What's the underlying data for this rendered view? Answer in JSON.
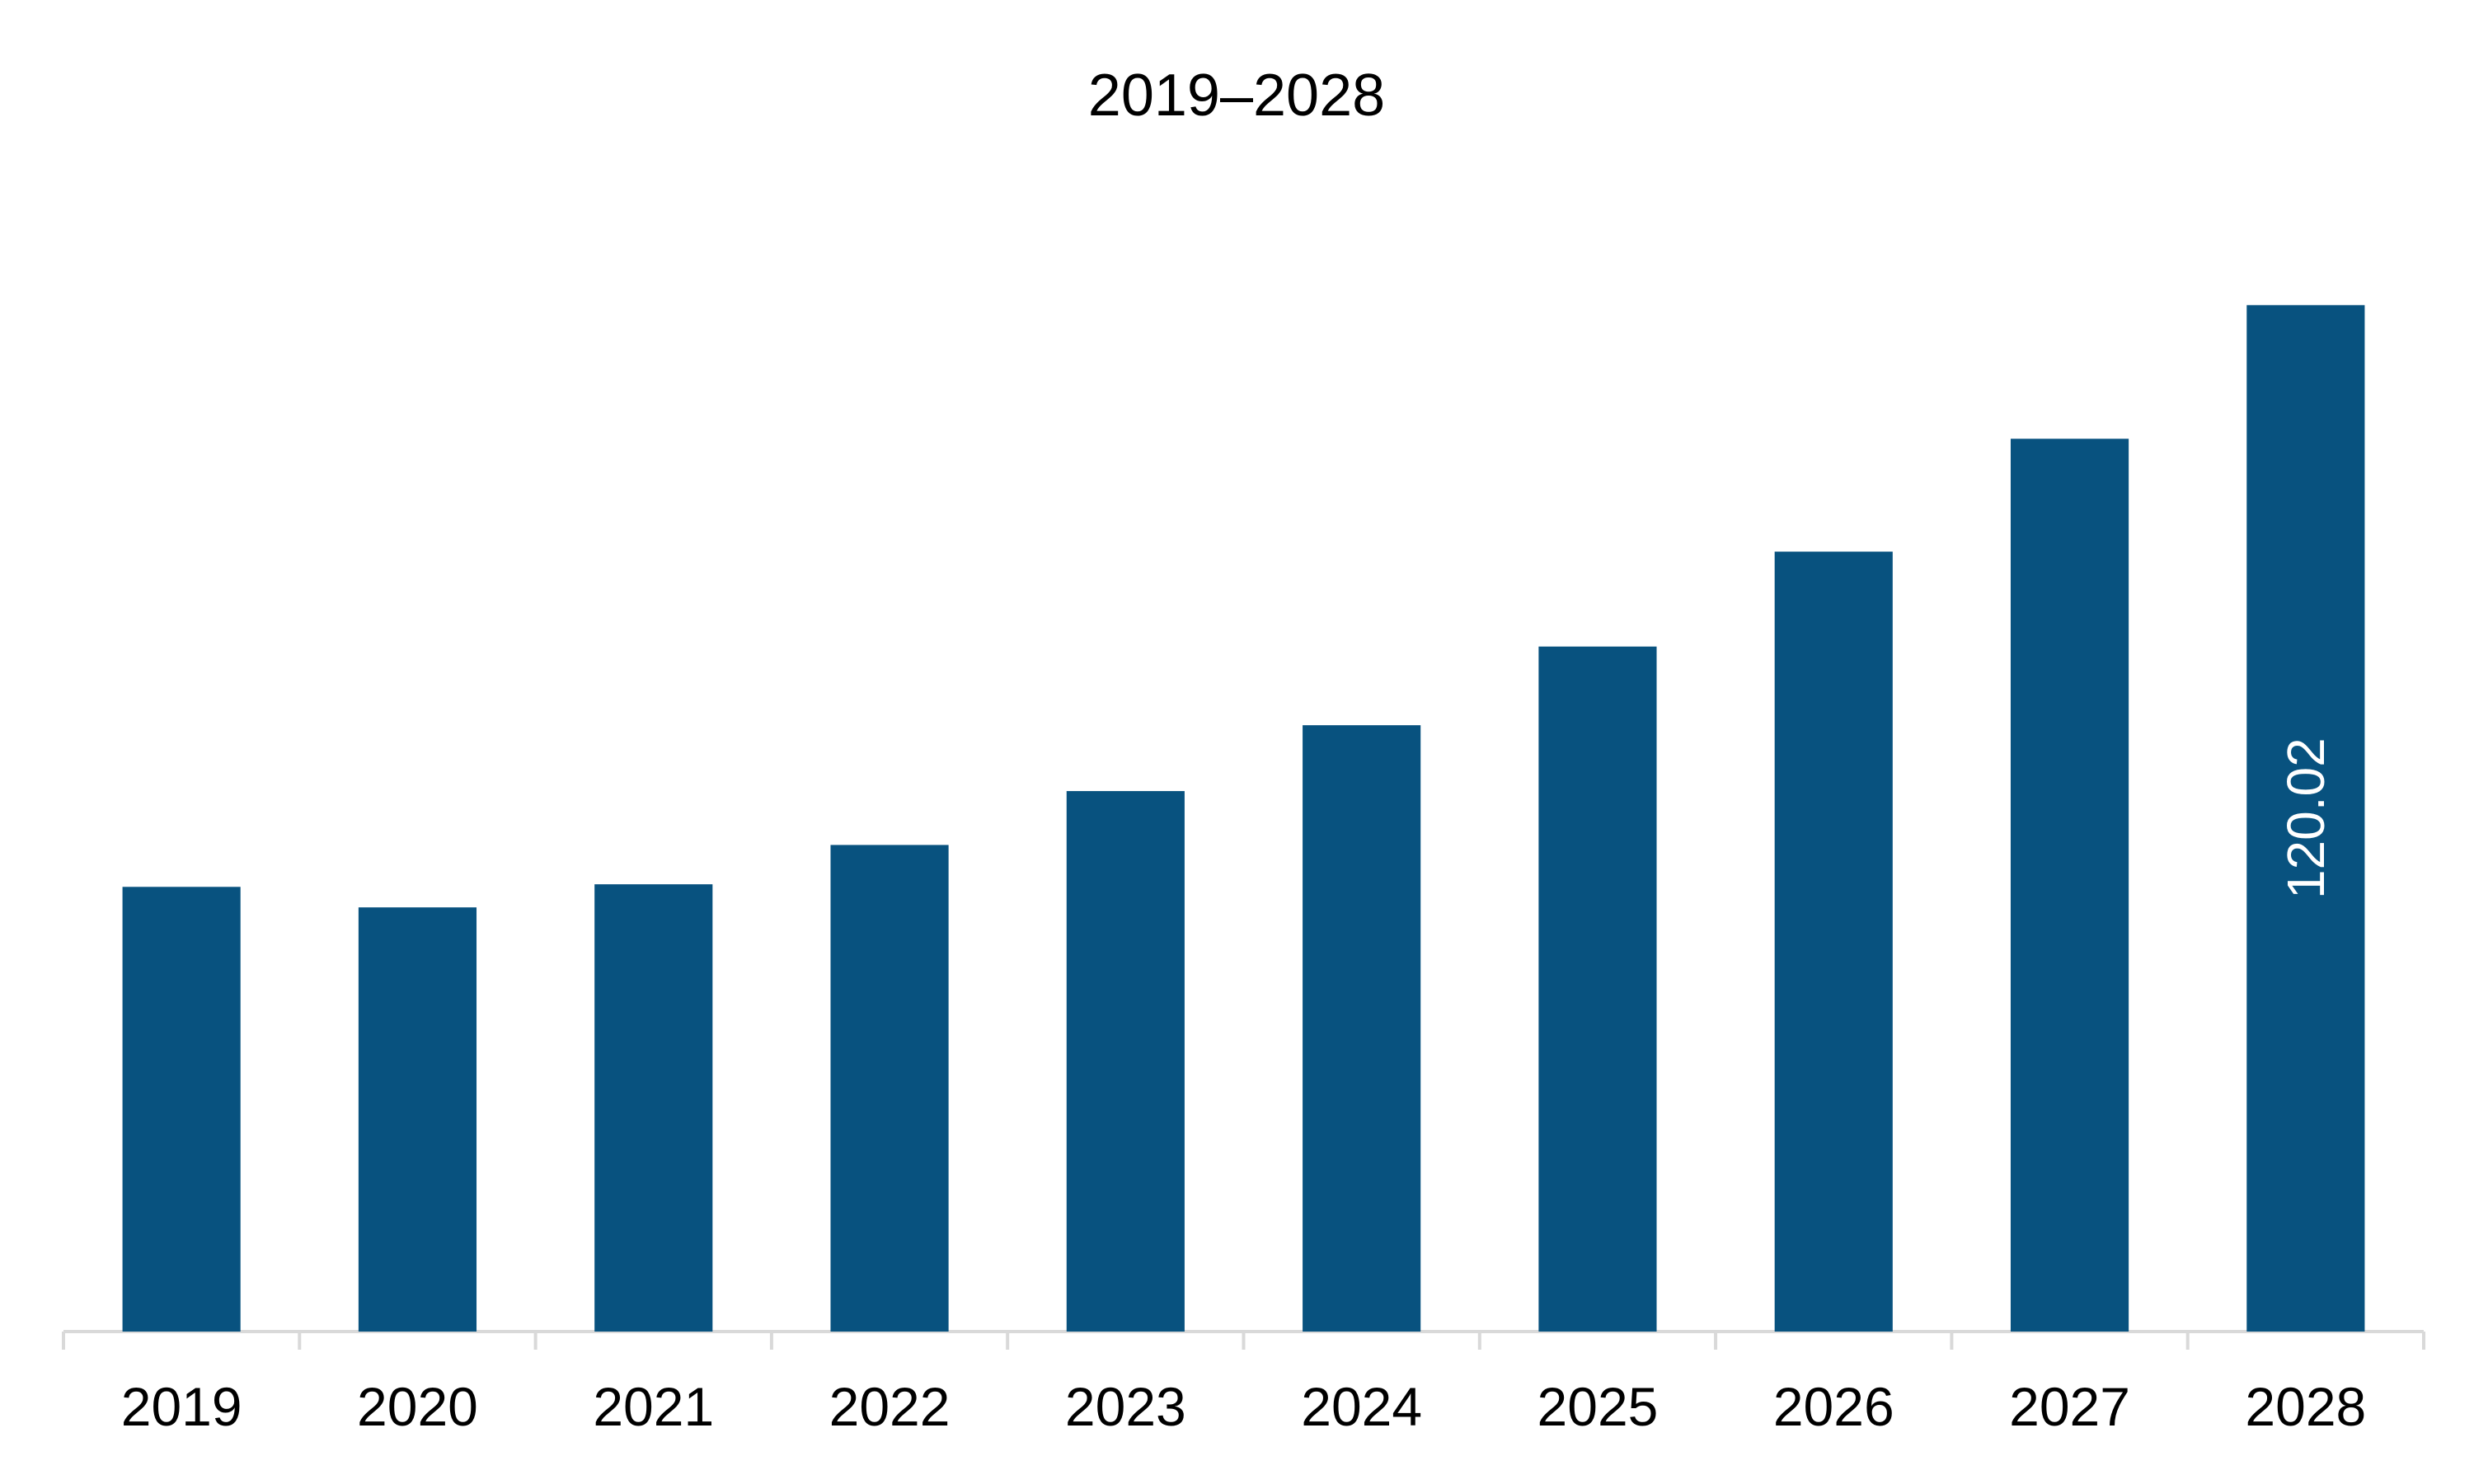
{
  "chart_data": {
    "type": "bar",
    "title": "2019–2028",
    "xlabel": "",
    "ylabel": "",
    "categories": [
      "2019",
      "2020",
      "2021",
      "2022",
      "2023",
      "2024",
      "2025",
      "2026",
      "2027",
      "2028"
    ],
    "values": [
      52.0,
      49.6,
      52.3,
      56.9,
      63.2,
      70.9,
      80.1,
      91.2,
      104.4,
      120.02
    ],
    "ylim": [
      0,
      132
    ],
    "bar_color": "#08527f",
    "data_labels": [
      {
        "index": 9,
        "text": "120.02",
        "color": "#ffffff"
      }
    ],
    "grid": false,
    "legend": "none"
  }
}
